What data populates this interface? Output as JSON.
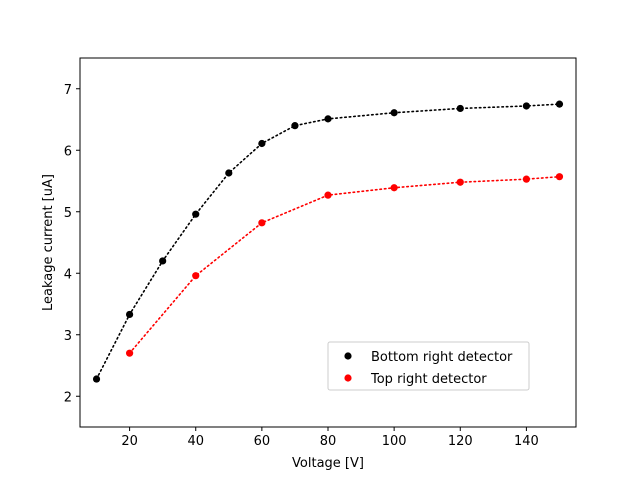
{
  "chart_data": {
    "type": "scatter",
    "title": "",
    "xlabel": "Voltage [V]",
    "ylabel": "Leakage current [uA]",
    "xlim": [
      5,
      155
    ],
    "ylim": [
      1.5,
      7.5
    ],
    "xticks": [
      20,
      40,
      60,
      80,
      100,
      120,
      140
    ],
    "yticks": [
      2,
      3,
      4,
      5,
      6,
      7
    ],
    "grid": false,
    "legend_position": "lower-right",
    "series": [
      {
        "name": "Bottom right detector",
        "color": "#000000",
        "line_style": "dotted",
        "points": [
          {
            "x": 10,
            "y": 2.28
          },
          {
            "x": 20,
            "y": 3.33
          },
          {
            "x": 30,
            "y": 4.2
          },
          {
            "x": 40,
            "y": 4.96
          },
          {
            "x": 50,
            "y": 5.63
          },
          {
            "x": 60,
            "y": 6.11
          },
          {
            "x": 70,
            "y": 6.4
          },
          {
            "x": 80,
            "y": 6.51
          },
          {
            "x": 100,
            "y": 6.61
          },
          {
            "x": 120,
            "y": 6.68
          },
          {
            "x": 140,
            "y": 6.72
          },
          {
            "x": 150,
            "y": 6.75
          }
        ]
      },
      {
        "name": "Top right detector",
        "color": "#ff0000",
        "line_style": "dotted",
        "points": [
          {
            "x": 20,
            "y": 2.7
          },
          {
            "x": 40,
            "y": 3.96
          },
          {
            "x": 60,
            "y": 4.82
          },
          {
            "x": 80,
            "y": 5.27
          },
          {
            "x": 100,
            "y": 5.39
          },
          {
            "x": 120,
            "y": 5.48
          },
          {
            "x": 140,
            "y": 5.53
          },
          {
            "x": 150,
            "y": 5.57
          }
        ]
      }
    ]
  }
}
